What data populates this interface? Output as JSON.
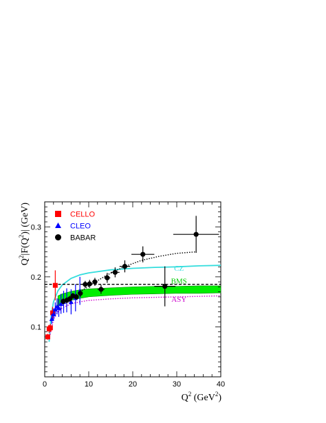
{
  "chart_data": {
    "type": "scatter",
    "xlabel_main": "Q",
    "xlabel_sup": "2",
    "xlabel_unit_open": " (GeV",
    "xlabel_unit_sup": "2",
    "xlabel_unit_close": ")",
    "ylabel_a": "Q",
    "ylabel_sup1": "2",
    "ylabel_b": "|F(Q",
    "ylabel_sup2": "2",
    "ylabel_c": ")| (GeV)",
    "xlim": [
      0,
      40
    ],
    "ylim": [
      0,
      0.35
    ],
    "xticks": [
      {
        "value": 0,
        "label": "0"
      },
      {
        "value": 10,
        "label": "10"
      },
      {
        "value": 20,
        "label": "20"
      },
      {
        "value": 30,
        "label": "30"
      },
      {
        "value": 40,
        "label": "40"
      }
    ],
    "yticks": [
      {
        "value": 0.1,
        "label": "0.1"
      },
      {
        "value": 0.2,
        "label": "0.2"
      },
      {
        "value": 0.3,
        "label": "0.3"
      }
    ],
    "grid": false,
    "legend_position": "top-left",
    "series": [
      {
        "name": "CELLO",
        "marker": "square",
        "color": "#ff0000",
        "points": [
          {
            "x": 0.7,
            "y": 0.08,
            "yerr": 0.006
          },
          {
            "x": 1.0,
            "y": 0.096,
            "yerr": 0.008
          },
          {
            "x": 1.3,
            "y": 0.098,
            "yerr": 0.008
          },
          {
            "x": 1.8,
            "y": 0.128,
            "yerr": 0.012
          },
          {
            "x": 2.4,
            "y": 0.183,
            "yerr": 0.03
          }
        ]
      },
      {
        "name": "CLEO",
        "marker": "triangle",
        "color": "#0000ff",
        "points": [
          {
            "x": 1.6,
            "y": 0.116,
            "yerr": 0.01
          },
          {
            "x": 2.0,
            "y": 0.125,
            "yerr": 0.012
          },
          {
            "x": 2.4,
            "y": 0.135,
            "yerr": 0.014
          },
          {
            "x": 2.8,
            "y": 0.141,
            "yerr": 0.016
          },
          {
            "x": 3.2,
            "y": 0.138,
            "yerr": 0.018
          },
          {
            "x": 3.7,
            "y": 0.146,
            "yerr": 0.02
          },
          {
            "x": 4.3,
            "y": 0.15,
            "yerr": 0.022
          },
          {
            "x": 5.0,
            "y": 0.153,
            "yerr": 0.024
          },
          {
            "x": 6.0,
            "y": 0.15,
            "yerr": 0.025
          },
          {
            "x": 7.0,
            "y": 0.158,
            "yerr": 0.027
          },
          {
            "x": 8.0,
            "y": 0.172,
            "yerr": 0.028
          }
        ]
      },
      {
        "name": "BABAR",
        "marker": "circle",
        "color": "#000000",
        "points": [
          {
            "x": 4.2,
            "y": 0.151,
            "yerr": 0.006,
            "xerr": 0.5
          },
          {
            "x": 5.0,
            "y": 0.153,
            "yerr": 0.006,
            "xerr": 0.4
          },
          {
            "x": 5.7,
            "y": 0.156,
            "yerr": 0.006,
            "xerr": 0.4
          },
          {
            "x": 6.4,
            "y": 0.162,
            "yerr": 0.006,
            "xerr": 0.4
          },
          {
            "x": 7.2,
            "y": 0.16,
            "yerr": 0.006,
            "xerr": 0.4
          },
          {
            "x": 8.1,
            "y": 0.167,
            "yerr": 0.007,
            "xerr": 0.5
          },
          {
            "x": 9.2,
            "y": 0.185,
            "yerr": 0.007,
            "xerr": 0.6
          },
          {
            "x": 10.2,
            "y": 0.186,
            "yerr": 0.008,
            "xerr": 0.5
          },
          {
            "x": 11.4,
            "y": 0.19,
            "yerr": 0.008,
            "xerr": 0.6
          },
          {
            "x": 12.8,
            "y": 0.175,
            "yerr": 0.009,
            "xerr": 0.8
          },
          {
            "x": 14.2,
            "y": 0.198,
            "yerr": 0.01,
            "xerr": 0.7
          },
          {
            "x": 16.0,
            "y": 0.209,
            "yerr": 0.01,
            "xerr": 1.0
          },
          {
            "x": 18.2,
            "y": 0.221,
            "yerr": 0.012,
            "xerr": 1.2
          },
          {
            "x": 22.3,
            "y": 0.245,
            "yerr": 0.016,
            "xerr": 2.6
          },
          {
            "x": 27.3,
            "y": 0.181,
            "yerr": 0.04,
            "xerr": 2.4
          },
          {
            "x": 34.4,
            "y": 0.285,
            "yerr": 0.037,
            "xerr": 5.2
          }
        ]
      }
    ],
    "curves": [
      {
        "name": "CZ",
        "style": "solid",
        "color": "#33dddd",
        "points": [
          [
            1.0,
            0.07
          ],
          [
            1.5,
            0.125
          ],
          [
            2,
            0.15
          ],
          [
            3,
            0.172
          ],
          [
            4,
            0.184
          ],
          [
            6,
            0.197
          ],
          [
            8,
            0.204
          ],
          [
            10,
            0.208
          ],
          [
            15,
            0.214
          ],
          [
            20,
            0.217
          ],
          [
            25,
            0.219
          ],
          [
            30,
            0.22
          ],
          [
            35,
            0.222
          ],
          [
            40,
            0.223
          ]
        ]
      },
      {
        "name": "ASY",
        "style": "dotted",
        "color": "#cc00cc",
        "points": [
          [
            1.0,
            0.075
          ],
          [
            2,
            0.115
          ],
          [
            3,
            0.13
          ],
          [
            4,
            0.138
          ],
          [
            6,
            0.146
          ],
          [
            8,
            0.15
          ],
          [
            10,
            0.153
          ],
          [
            15,
            0.156
          ],
          [
            20,
            0.158
          ],
          [
            25,
            0.159
          ],
          [
            30,
            0.16
          ],
          [
            35,
            0.161
          ],
          [
            40,
            0.162
          ]
        ]
      },
      {
        "name": "BABAR-fit",
        "style": "dotted",
        "color": "#000000",
        "points": [
          [
            3,
            0.14
          ],
          [
            5,
            0.152
          ],
          [
            8,
            0.17
          ],
          [
            11,
            0.187
          ],
          [
            14,
            0.203
          ],
          [
            18,
            0.22
          ],
          [
            22,
            0.233
          ],
          [
            26,
            0.241
          ],
          [
            30,
            0.247
          ],
          [
            34.4,
            0.25
          ]
        ]
      },
      {
        "name": "asymptotic-limit",
        "style": "dashed",
        "color": "#000000",
        "points": [
          [
            0,
            0.185
          ],
          [
            40,
            0.185
          ]
        ]
      }
    ],
    "band": {
      "name": "BMS",
      "color": "#00ee00",
      "upper": [
        [
          3,
          0.162
        ],
        [
          4,
          0.166
        ],
        [
          6,
          0.171
        ],
        [
          8,
          0.174
        ],
        [
          10,
          0.176
        ],
        [
          15,
          0.178
        ],
        [
          20,
          0.18
        ],
        [
          25,
          0.181
        ],
        [
          30,
          0.181
        ],
        [
          35,
          0.182
        ],
        [
          40,
          0.182
        ]
      ],
      "lower": [
        [
          3,
          0.14
        ],
        [
          4,
          0.147
        ],
        [
          6,
          0.153
        ],
        [
          8,
          0.157
        ],
        [
          10,
          0.16
        ],
        [
          15,
          0.163
        ],
        [
          20,
          0.165
        ],
        [
          25,
          0.166
        ],
        [
          30,
          0.167
        ],
        [
          35,
          0.167
        ],
        [
          40,
          0.168
        ]
      ]
    },
    "curve_labels": [
      {
        "text": "CZ",
        "x": 30.5,
        "y": 0.212,
        "color": "#33dddd"
      },
      {
        "text": "BMS",
        "x": 30.5,
        "y": 0.187,
        "color": "#00cc00"
      },
      {
        "text": "ASY",
        "x": 30.5,
        "y": 0.15,
        "color": "#cc00cc"
      }
    ]
  }
}
